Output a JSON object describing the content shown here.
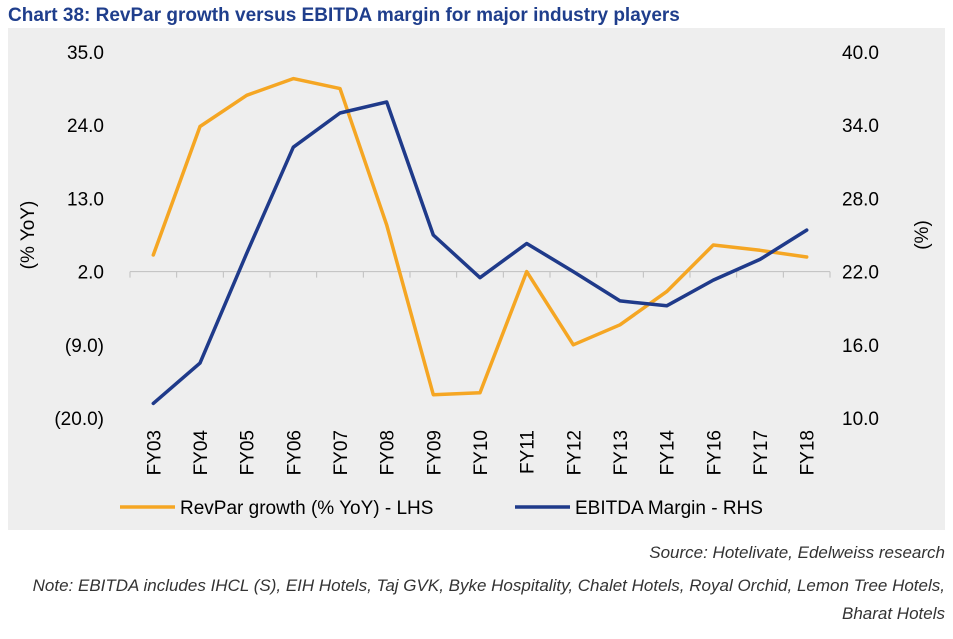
{
  "title": "Chart 38: RevPar growth versus EBITDA margin for major industry players",
  "source": "Source: Hotelivate, Edelweiss research",
  "note": "Note: EBITDA includes IHCL (S), EIH Hotels, Taj GVK, Byke Hospitality, Chalet Hotels, Royal Orchid, Lemon Tree Hotels, Bharat Hotels",
  "colors": {
    "revpar": "#f5a623",
    "ebitda": "#1f3a8a",
    "background": "#eeeeee"
  },
  "chart_data": {
    "type": "line",
    "categories": [
      "FY03",
      "FY04",
      "FY05",
      "FY06",
      "FY07",
      "FY08",
      "FY09",
      "FY10",
      "FY11",
      "FY12",
      "FY13",
      "FY14",
      "FY16",
      "FY17",
      "FY18"
    ],
    "ylabel_left": "(% YoY)",
    "ylabel_right": "(%)",
    "ylim_left": [
      -20,
      35
    ],
    "ylim_right": [
      10,
      40
    ],
    "yticks_left": [
      "35.0",
      "24.0",
      "13.0",
      "2.0",
      "(9.0)",
      "(20.0)"
    ],
    "yticks_right": [
      "40.0",
      "34.0",
      "28.0",
      "22.0",
      "16.0",
      "10.0"
    ],
    "grid": false,
    "legend_position": "bottom",
    "series": [
      {
        "name": "RevPar growth (% YoY) - LHS",
        "axis": "left",
        "values": [
          4.5,
          23.8,
          28.5,
          31.0,
          29.5,
          9.0,
          -16.5,
          -16.2,
          2.0,
          -9.0,
          -6.0,
          -1.0,
          6.0,
          5.2,
          4.2
        ]
      },
      {
        "name": "EBITDA Margin - RHS",
        "axis": "right",
        "values": [
          11.2,
          14.5,
          23.5,
          32.2,
          35.0,
          35.9,
          25.0,
          21.5,
          24.3,
          22.0,
          19.6,
          19.2,
          21.3,
          23.0,
          25.4
        ]
      }
    ]
  }
}
